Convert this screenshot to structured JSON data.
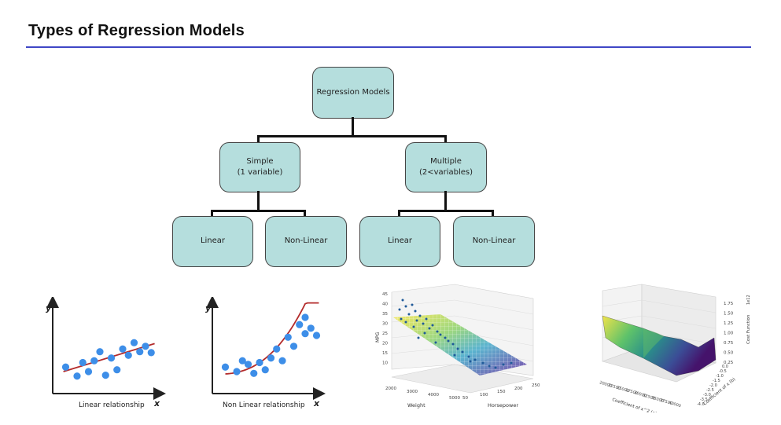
{
  "slide": {
    "title": "Types of Regression Models"
  },
  "tree": {
    "root": "Regression Models",
    "simple": "Simple\n(1 variable)",
    "multiple": "Multiple\n(2<variables)",
    "simple_linear": "Linear",
    "simple_nonlinear": "Non-Linear",
    "multiple_linear": "Linear",
    "multiple_nonlinear": "Non-Linear"
  },
  "illustrations": {
    "linear": {
      "xlabel": "x",
      "ylabel": "y",
      "caption": "Linear relationship",
      "points": [
        [
          1,
          2.5
        ],
        [
          2,
          1.5
        ],
        [
          2.5,
          3
        ],
        [
          3,
          2
        ],
        [
          3.5,
          3.2
        ],
        [
          4,
          4.2
        ],
        [
          4.5,
          1.6
        ],
        [
          5,
          3.5
        ],
        [
          5.5,
          2.2
        ],
        [
          6,
          4.5
        ],
        [
          6.5,
          3.8
        ],
        [
          7,
          5.2
        ],
        [
          7.5,
          4.2
        ],
        [
          8,
          4.8
        ],
        [
          8.5,
          4.1
        ]
      ],
      "trend": [
        [
          0.8,
          2.0
        ],
        [
          8.8,
          5.1
        ]
      ],
      "point_color": "#3d8ee8",
      "line_color": "#b32b2b"
    },
    "nonlinear": {
      "xlabel": "x",
      "ylabel": "y",
      "caption": "Non Linear relationship",
      "points": [
        [
          1,
          2.5
        ],
        [
          2,
          2.0
        ],
        [
          2.5,
          3.2
        ],
        [
          3,
          2.8
        ],
        [
          3.5,
          1.8
        ],
        [
          4,
          3.0
        ],
        [
          4.5,
          2.2
        ],
        [
          5,
          3.5
        ],
        [
          5.5,
          4.5
        ],
        [
          6,
          3.2
        ],
        [
          6.5,
          5.8
        ],
        [
          7,
          4.8
        ],
        [
          7.5,
          7.2
        ],
        [
          8,
          6.2
        ],
        [
          8.5,
          6.8
        ],
        [
          8,
          8.0
        ],
        [
          9,
          6.0
        ]
      ],
      "point_color": "#3d8ee8",
      "line_color": "#b32b2b"
    },
    "surface_mpg": {
      "zlabel": "MPG",
      "xlabel": "Weight",
      "ylabel": "Horsepower",
      "z_ticks": [
        "45",
        "40",
        "35",
        "30",
        "25",
        "20",
        "15",
        "10"
      ],
      "x_ticks": [
        "2000",
        "3000",
        "4000",
        "5000"
      ],
      "y_ticks": [
        "50",
        "100",
        "150",
        "200",
        "250"
      ]
    },
    "surface_cost": {
      "zlabel": "Cost Function",
      "xlabel": "Coefficient of x^2 (a)",
      "ylabel": "Coefficient of x (b)",
      "zlabel_suffix": "1e12",
      "z_ticks": [
        "1.75",
        "1.50",
        "1.25",
        "1.00",
        "0.75",
        "0.50",
        "0.25"
      ],
      "x_ticks": [
        "20000",
        "22500",
        "25000",
        "27500",
        "30000",
        "32500",
        "35000",
        "37500",
        "40000"
      ],
      "y_ticks": [
        "0.0",
        "-0.5",
        "-1.0",
        "-1.5",
        "-2.0",
        "-2.5",
        "-3.0",
        "-3.5",
        "-4.0"
      ]
    }
  }
}
